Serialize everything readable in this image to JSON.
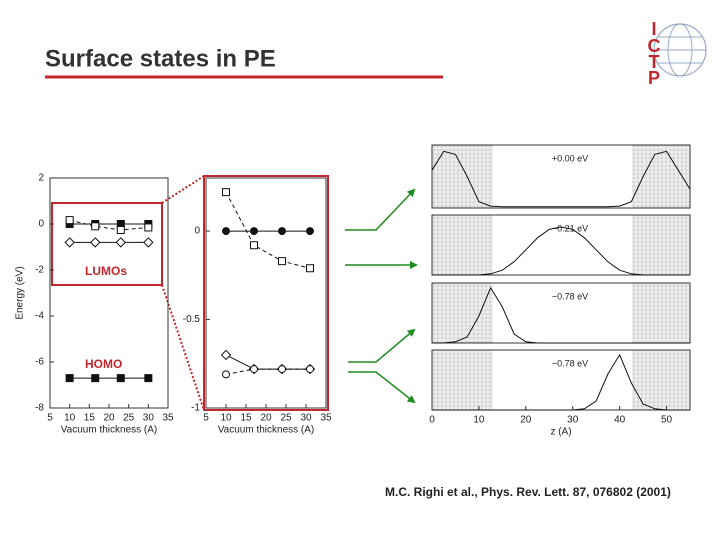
{
  "slide_title": "Surface states in PE",
  "logo": {
    "letters": [
      "I",
      "C",
      "T",
      "P"
    ]
  },
  "citation": "M.C. Righi et al., Phys. Rev. Lett. 87, 076802 (2001)",
  "chart_data": [
    {
      "type": "line",
      "xlabel": "Vacuum thickness (A)",
      "ylabel": "Energy (eV)",
      "xlim": [
        5,
        35
      ],
      "xticks": [
        5,
        10,
        15,
        20,
        25,
        30,
        35
      ],
      "ylim": [
        -8,
        2
      ],
      "yticks": [
        2,
        0,
        -2,
        -4,
        -6,
        -8
      ],
      "annotations": [
        "LUMOs",
        "HOMO"
      ],
      "x": [
        10,
        16.5,
        23,
        30
      ],
      "series": [
        {
          "color": "#111111",
          "marker": "square",
          "dash": "solid",
          "values": [
            0,
            0,
            0,
            0
          ]
        },
        {
          "color": "#111111",
          "marker": "square-open",
          "dash": "dashed",
          "values": [
            0.17,
            -0.1,
            -0.26,
            -0.15
          ]
        },
        {
          "color": "#111111",
          "marker": "diamond-open",
          "dash": "solid",
          "values": [
            -0.8,
            -0.8,
            -0.8,
            -0.8
          ]
        },
        {
          "color": "#111111",
          "marker": "square",
          "dash": "solid",
          "values": [
            -6.7,
            -6.7,
            -6.7,
            -6.7
          ]
        }
      ]
    },
    {
      "type": "line",
      "xlabel": "Vacuum thickness (A)",
      "xlim": [
        5,
        35
      ],
      "xticks": [
        5,
        10,
        15,
        20,
        25,
        30,
        35
      ],
      "ylim": [
        -1,
        0.3
      ],
      "yticks": [
        0,
        -0.5,
        -1
      ],
      "x": [
        10,
        17,
        24,
        31
      ],
      "series": [
        {
          "color": "#111111",
          "marker": "circle",
          "dash": "solid",
          "values": [
            0,
            0,
            0,
            0
          ]
        },
        {
          "color": "#111111",
          "marker": "square-open",
          "dash": "dashed",
          "values": [
            0.22,
            -0.08,
            -0.17,
            -0.21
          ]
        },
        {
          "color": "#111111",
          "marker": "diamond-open",
          "dash": "solid",
          "values": [
            -0.7,
            -0.78,
            -0.78,
            -0.78
          ]
        },
        {
          "color": "#111111",
          "marker": "circle-open",
          "dash": "dashed",
          "values": [
            -0.81,
            -0.78,
            -0.78,
            -0.78
          ]
        }
      ]
    },
    {
      "type": "line",
      "annotations": [
        "+0.00 eV"
      ],
      "xlim": [
        0,
        55
      ],
      "ylim": [
        0,
        1
      ],
      "x": [
        0,
        2.5,
        5,
        7.5,
        10,
        12.5,
        15,
        17.5,
        20,
        22.5,
        25,
        27.5,
        30,
        32.5,
        35,
        37.5,
        40,
        42.5,
        45,
        47.5,
        50,
        52.5,
        55
      ],
      "series": [
        {
          "color": "#111111",
          "values": [
            0.6,
            0.9,
            0.85,
            0.5,
            0.1,
            0.03,
            0.02,
            0.02,
            0.02,
            0.02,
            0.02,
            0.02,
            0.02,
            0.02,
            0.02,
            0.02,
            0.03,
            0.1,
            0.5,
            0.85,
            0.9,
            0.6,
            0.3
          ]
        }
      ]
    },
    {
      "type": "line",
      "annotations": [
        "−0.21 eV"
      ],
      "xlim": [
        0,
        55
      ],
      "ylim": [
        0,
        1
      ],
      "x": [
        0,
        2.5,
        5,
        7.5,
        10,
        12.5,
        15,
        17.5,
        20,
        22.5,
        25,
        27.5,
        30,
        32.5,
        35,
        37.5,
        40,
        42.5,
        45,
        47.5,
        50,
        52.5,
        55
      ],
      "series": [
        {
          "color": "#111111",
          "values": [
            0,
            0,
            0,
            0,
            0,
            0.02,
            0.08,
            0.22,
            0.42,
            0.62,
            0.76,
            0.8,
            0.76,
            0.62,
            0.42,
            0.22,
            0.08,
            0.02,
            0,
            0,
            0,
            0,
            0
          ]
        }
      ]
    },
    {
      "type": "line",
      "annotations": [
        "−0.78 eV"
      ],
      "xlim": [
        0,
        55
      ],
      "ylim": [
        0,
        1
      ],
      "x": [
        0,
        2.5,
        5,
        7.5,
        10,
        12.5,
        15,
        17.5,
        20,
        22.5,
        25,
        27.5,
        30,
        32.5,
        35,
        37.5,
        40,
        42.5,
        45,
        47.5,
        50,
        52.5,
        55
      ],
      "series": [
        {
          "color": "#111111",
          "values": [
            0,
            0,
            0.02,
            0.1,
            0.45,
            0.92,
            0.6,
            0.15,
            0.02,
            0,
            0,
            0,
            0,
            0,
            0,
            0,
            0,
            0,
            0,
            0,
            0,
            0,
            0
          ]
        }
      ]
    },
    {
      "type": "line",
      "annotations": [
        "−0.78 eV"
      ],
      "xlabel": "z (A)",
      "xlim": [
        0,
        55
      ],
      "xticks": [
        0,
        10,
        20,
        30,
        40,
        50
      ],
      "ylim": [
        0,
        1
      ],
      "x": [
        0,
        2.5,
        5,
        7.5,
        10,
        12.5,
        15,
        17.5,
        20,
        22.5,
        25,
        27.5,
        30,
        32.5,
        35,
        37.5,
        40,
        42.5,
        45,
        47.5,
        50,
        52.5,
        55
      ],
      "series": [
        {
          "color": "#111111",
          "values": [
            0,
            0,
            0,
            0,
            0,
            0,
            0,
            0,
            0,
            0,
            0,
            0,
            0,
            0.02,
            0.15,
            0.6,
            0.92,
            0.45,
            0.1,
            0.02,
            0,
            0,
            0
          ]
        }
      ]
    }
  ]
}
